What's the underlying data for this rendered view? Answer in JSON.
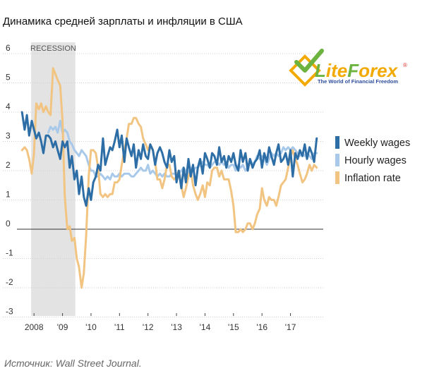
{
  "title": "Динамика средней зарплаты и инфляции в США",
  "source": "Источник: Wall Street Journal.",
  "logo": {
    "name": "LiteForex",
    "trademark": "®",
    "tagline": "The World of Financial Freedom"
  },
  "chart_data": {
    "type": "line",
    "ylim": [
      -3.3,
      6.2
    ],
    "xlim": [
      2007.5,
      2018.15
    ],
    "yticks": [
      6,
      5,
      4,
      3,
      2,
      1,
      0,
      -1,
      -2,
      -3
    ],
    "ytick_labels": [
      "6",
      "5",
      "4",
      "3",
      "2",
      "1",
      "0",
      "-1",
      "-2",
      "-3"
    ],
    "xticks": [
      2008,
      2009,
      2010,
      2011,
      2012,
      2013,
      2014,
      2015,
      2016,
      2017
    ],
    "xtick_labels": [
      "2008",
      "'09",
      "'10",
      "'11",
      "'12",
      "'13",
      "'14",
      "'15",
      "'16",
      "'17"
    ],
    "recession": {
      "label": "RECESSION",
      "start": 2007.9,
      "end": 2009.45
    },
    "colors": {
      "weekly": "#2e6ea6",
      "hourly": "#a9c9ea",
      "inflation": "#f2c482",
      "recession": "#e3e3e3",
      "zero": "#333333"
    },
    "series": [
      {
        "name": "Weekly wages",
        "color": "#2e6ea6",
        "x": [
          2007.58,
          2007.67,
          2007.75,
          2007.83,
          2007.92,
          2008.0,
          2008.08,
          2008.17,
          2008.25,
          2008.33,
          2008.42,
          2008.5,
          2008.58,
          2008.67,
          2008.75,
          2008.83,
          2008.92,
          2009.0,
          2009.08,
          2009.17,
          2009.25,
          2009.33,
          2009.42,
          2009.5,
          2009.58,
          2009.67,
          2009.75,
          2009.83,
          2009.92,
          2010.0,
          2010.08,
          2010.17,
          2010.25,
          2010.33,
          2010.42,
          2010.5,
          2010.58,
          2010.67,
          2010.75,
          2010.83,
          2010.92,
          2011.0,
          2011.08,
          2011.17,
          2011.25,
          2011.33,
          2011.42,
          2011.5,
          2011.58,
          2011.67,
          2011.75,
          2011.83,
          2011.92,
          2012.0,
          2012.08,
          2012.17,
          2012.25,
          2012.33,
          2012.42,
          2012.5,
          2012.58,
          2012.67,
          2012.75,
          2012.83,
          2012.92,
          2013.0,
          2013.08,
          2013.17,
          2013.25,
          2013.33,
          2013.42,
          2013.5,
          2013.58,
          2013.67,
          2013.75,
          2013.83,
          2013.92,
          2014.0,
          2014.08,
          2014.17,
          2014.25,
          2014.33,
          2014.42,
          2014.5,
          2014.58,
          2014.67,
          2014.75,
          2014.83,
          2014.92,
          2015.0,
          2015.08,
          2015.17,
          2015.25,
          2015.33,
          2015.42,
          2015.5,
          2015.58,
          2015.67,
          2015.75,
          2015.83,
          2015.92,
          2016.0,
          2016.08,
          2016.17,
          2016.25,
          2016.33,
          2016.42,
          2016.5,
          2016.58,
          2016.67,
          2016.75,
          2016.83,
          2016.92,
          2017.0,
          2017.08,
          2017.17,
          2017.25,
          2017.33,
          2017.42,
          2017.5,
          2017.58,
          2017.67,
          2017.75,
          2017.83,
          2017.92
        ],
        "values": [
          4.0,
          3.4,
          3.9,
          3.2,
          3.7,
          3.4,
          3.1,
          3.3,
          3.0,
          2.6,
          3.2,
          3.2,
          3.1,
          2.8,
          3.0,
          2.7,
          2.4,
          3.0,
          2.8,
          3.0,
          2.1,
          2.5,
          1.7,
          2.0,
          1.2,
          1.8,
          1.1,
          0.8,
          1.4,
          1.0,
          1.6,
          1.8,
          2.2,
          2.0,
          3.1,
          2.2,
          2.5,
          2.8,
          2.7,
          3.0,
          3.4,
          2.8,
          3.2,
          2.3,
          3.1,
          2.8,
          2.5,
          2.9,
          2.1,
          2.7,
          2.4,
          2.9,
          2.5,
          2.4,
          2.9,
          2.7,
          2.2,
          2.6,
          2.8,
          2.6,
          2.3,
          2.1,
          2.7,
          2.3,
          2.5,
          1.6,
          2.0,
          1.4,
          2.1,
          1.6,
          2.4,
          1.8,
          2.2,
          1.5,
          2.1,
          2.4,
          1.9,
          2.6,
          2.4,
          2.1,
          2.6,
          2.5,
          2.2,
          2.8,
          2.3,
          2.5,
          2.1,
          2.5,
          2.3,
          2.6,
          2.2,
          2.0,
          2.7,
          2.3,
          2.6,
          2.0,
          2.4,
          2.1,
          2.3,
          2.4,
          2.7,
          2.1,
          2.6,
          2.3,
          2.8,
          2.5,
          2.2,
          2.6,
          2.9,
          2.3,
          2.4,
          2.6,
          2.2,
          2.7,
          1.8,
          2.6,
          2.4,
          2.7,
          2.5,
          2.9,
          2.4,
          2.8,
          2.6,
          2.3,
          3.1
        ]
      },
      {
        "name": "Hourly wages",
        "color": "#a9c9ea",
        "x": [
          2008.5,
          2008.58,
          2008.67,
          2008.75,
          2008.83,
          2008.92,
          2009.0,
          2009.08,
          2009.17,
          2009.25,
          2009.33,
          2009.42,
          2009.5,
          2009.58,
          2009.67,
          2009.75,
          2009.83,
          2009.92,
          2010.0,
          2010.08,
          2010.17,
          2010.25,
          2010.33,
          2010.42,
          2010.5,
          2010.58,
          2010.67,
          2010.75,
          2010.83,
          2010.92,
          2011.0,
          2011.08,
          2011.17,
          2011.25,
          2011.33,
          2011.42,
          2011.5,
          2011.58,
          2011.67,
          2011.75,
          2011.83,
          2011.92,
          2012.0,
          2012.08,
          2012.17,
          2012.25,
          2012.33,
          2012.42,
          2012.5,
          2012.58,
          2012.67,
          2012.75,
          2012.83,
          2012.92,
          2013.0,
          2013.08,
          2013.17,
          2013.25,
          2013.33,
          2013.42,
          2013.5,
          2013.58,
          2013.67,
          2013.75,
          2013.83,
          2013.92,
          2014.0,
          2014.08,
          2014.17,
          2014.25,
          2014.33,
          2014.42,
          2014.5,
          2014.58,
          2014.67,
          2014.75,
          2014.83,
          2014.92,
          2015.0,
          2015.08,
          2015.17,
          2015.25,
          2015.33,
          2015.42,
          2015.5,
          2015.58,
          2015.67,
          2015.75,
          2015.83,
          2015.92,
          2016.0,
          2016.08,
          2016.17,
          2016.25,
          2016.33,
          2016.42,
          2016.5,
          2016.58,
          2016.67,
          2016.75,
          2016.83,
          2016.92,
          2017.0,
          2017.08,
          2017.17,
          2017.25,
          2017.33,
          2017.42,
          2017.5,
          2017.58,
          2017.67,
          2017.75,
          2017.83,
          2017.92
        ],
        "values": [
          3.3,
          3.5,
          3.4,
          3.5,
          3.3,
          3.7,
          3.3,
          3.4,
          3.3,
          3.0,
          2.9,
          2.7,
          2.6,
          2.5,
          2.7,
          2.6,
          2.5,
          2.2,
          2.0,
          2.0,
          1.8,
          1.8,
          1.9,
          1.8,
          1.7,
          1.8,
          1.7,
          1.9,
          1.8,
          1.8,
          1.9,
          1.8,
          1.9,
          1.9,
          1.9,
          1.8,
          1.8,
          1.9,
          2.0,
          2.1,
          2.0,
          2.0,
          2.2,
          1.9,
          2.0,
          1.9,
          1.8,
          1.9,
          1.8,
          1.9,
          1.8,
          1.8,
          1.9,
          1.9,
          1.9,
          1.9,
          2.0,
          2.1,
          2.0,
          1.9,
          2.1,
          2.0,
          2.1,
          2.1,
          2.2,
          2.3,
          2.2,
          2.2,
          2.1,
          2.2,
          2.3,
          2.3,
          2.2,
          2.3,
          2.2,
          2.3,
          2.1,
          2.2,
          2.2,
          2.0,
          2.2,
          2.1,
          2.2,
          2.0,
          2.1,
          2.4,
          2.2,
          2.3,
          2.5,
          2.4,
          2.5,
          2.4,
          2.2,
          2.4,
          2.6,
          2.5,
          2.6,
          2.5,
          2.6,
          2.8,
          2.7,
          2.8,
          2.7,
          2.8,
          2.7,
          2.6,
          2.5,
          2.6,
          2.5,
          2.6,
          2.5,
          2.4,
          2.6,
          2.6
        ]
      },
      {
        "name": "Inflation rate",
        "color": "#f2c482",
        "x": [
          2007.58,
          2007.67,
          2007.75,
          2007.83,
          2007.92,
          2008.0,
          2008.08,
          2008.17,
          2008.25,
          2008.33,
          2008.42,
          2008.5,
          2008.58,
          2008.67,
          2008.75,
          2008.83,
          2008.92,
          2009.0,
          2009.08,
          2009.17,
          2009.25,
          2009.33,
          2009.42,
          2009.5,
          2009.58,
          2009.67,
          2009.75,
          2009.83,
          2009.92,
          2010.0,
          2010.08,
          2010.17,
          2010.25,
          2010.33,
          2010.42,
          2010.5,
          2010.58,
          2010.67,
          2010.75,
          2010.83,
          2010.92,
          2011.0,
          2011.08,
          2011.17,
          2011.25,
          2011.33,
          2011.42,
          2011.5,
          2011.58,
          2011.67,
          2011.75,
          2011.83,
          2011.92,
          2012.0,
          2012.08,
          2012.17,
          2012.25,
          2012.33,
          2012.42,
          2012.5,
          2012.58,
          2012.67,
          2012.75,
          2012.83,
          2012.92,
          2013.0,
          2013.08,
          2013.17,
          2013.25,
          2013.33,
          2013.42,
          2013.5,
          2013.58,
          2013.67,
          2013.75,
          2013.83,
          2013.92,
          2014.0,
          2014.08,
          2014.17,
          2014.25,
          2014.33,
          2014.42,
          2014.5,
          2014.58,
          2014.67,
          2014.75,
          2014.83,
          2014.92,
          2015.0,
          2015.08,
          2015.17,
          2015.25,
          2015.33,
          2015.42,
          2015.5,
          2015.58,
          2015.67,
          2015.75,
          2015.83,
          2015.92,
          2016.0,
          2016.08,
          2016.17,
          2016.25,
          2016.33,
          2016.42,
          2016.5,
          2016.58,
          2016.67,
          2016.75,
          2016.83,
          2016.92,
          2017.0,
          2017.08,
          2017.17,
          2017.25,
          2017.33,
          2017.42,
          2017.5,
          2017.58,
          2017.67,
          2017.75,
          2017.83,
          2017.92
        ],
        "values": [
          2.7,
          2.8,
          2.7,
          2.4,
          1.9,
          2.6,
          4.3,
          4.1,
          4.3,
          4.0,
          4.2,
          4.0,
          3.9,
          5.5,
          5.3,
          5.1,
          4.9,
          3.7,
          1.1,
          0.0,
          0.1,
          -0.4,
          -0.3,
          -1.0,
          -1.3,
          -2.0,
          -1.5,
          -0.2,
          1.8,
          2.7,
          2.7,
          2.6,
          2.1,
          1.2,
          1.1,
          1.2,
          1.1,
          1.2,
          1.2,
          1.6,
          1.6,
          1.7,
          2.2,
          2.7,
          3.1,
          3.6,
          3.6,
          3.8,
          3.8,
          3.6,
          3.5,
          3.1,
          2.9,
          2.7,
          2.9,
          2.7,
          2.3,
          1.7,
          1.7,
          1.4,
          1.7,
          2.2,
          2.2,
          1.8,
          1.7,
          1.8,
          2.0,
          1.5,
          1.1,
          1.4,
          1.8,
          2.0,
          1.5,
          1.2,
          1.0,
          1.2,
          1.5,
          1.1,
          1.6,
          1.5,
          2.0,
          2.1,
          2.1,
          1.8,
          2.0,
          1.7,
          1.7,
          1.7,
          1.3,
          0.8,
          -0.1,
          -0.1,
          0.0,
          -0.1,
          0.0,
          0.2,
          0.2,
          0.0,
          0.2,
          0.5,
          0.7,
          1.4,
          1.0,
          0.8,
          1.1,
          1.0,
          1.0,
          0.8,
          1.1,
          1.5,
          1.6,
          1.7,
          2.1,
          2.5,
          2.7,
          2.4,
          2.2,
          1.9,
          1.6,
          1.7,
          1.9,
          2.2,
          2.0,
          2.2,
          2.1
        ]
      }
    ]
  }
}
